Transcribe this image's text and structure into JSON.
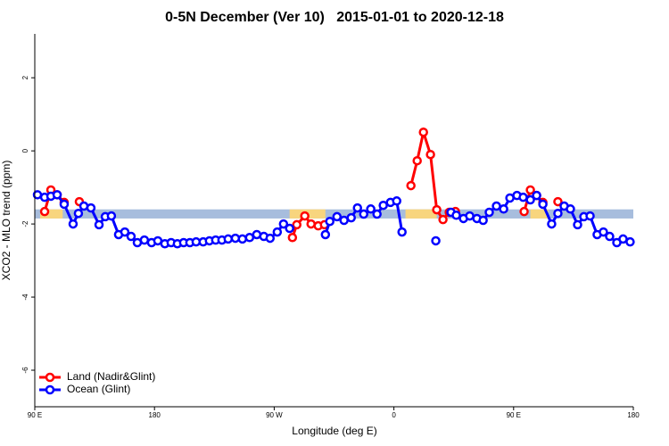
{
  "chart_data": {
    "type": "line",
    "title": "0-5N December (Ver 10)   2015-01-01 to 2020-12-18",
    "x_label": "Longitude (deg E)",
    "y_label": "XCO2 - MLO trend (ppm)",
    "xlim": [
      90,
      540
    ],
    "ylim": [
      -7,
      3.2
    ],
    "xticks": [
      {
        "value": 90,
        "label": "90 E"
      },
      180,
      {
        "value": 270,
        "label": "90 W"
      },
      {
        "value": 360,
        "label": "0"
      },
      {
        "value": 450,
        "label": "90 E"
      },
      {
        "value": 540,
        "label": "180"
      }
    ],
    "yticks": [
      -6,
      -4,
      -2,
      0,
      2
    ],
    "legend": "bottom-left",
    "band": {
      "y": [
        -1.85,
        -1.6
      ],
      "color": "#a7bddd",
      "highlight_color": "#f8d57e",
      "highlights": [
        [
          94,
          111
        ],
        [
          281.6,
          308.5
        ],
        [
          368.7,
          392.2
        ],
        [
          462.6,
          476
        ]
      ]
    },
    "series": [
      {
        "name": "Land (Nadir&Glint)",
        "color": "#ff0000",
        "x": [
          97.4,
          102.1,
          106.8,
          112.1,
          118,
          123.5,
          200,
          283.7,
          287.0,
          293.0,
          297.7,
          303.1,
          307.8,
          340,
          372.8,
          377.5,
          382.2,
          387.5,
          392.2,
          396.9,
          401.6,
          406.3,
          430,
          457.9,
          462.6,
          467.3,
          472.0,
          478,
          483.3
        ],
        "values": [
          -1.66,
          -1.07,
          -1.2,
          -1.41,
          null,
          -1.39,
          null,
          -2.37,
          -2.02,
          -1.78,
          -2.0,
          -2.05,
          -2.02,
          null,
          -0.95,
          -0.27,
          0.51,
          -0.1,
          -1.61,
          -1.88,
          -1.68,
          -1.66,
          null,
          -1.66,
          -1.07,
          -1.22,
          -1.41,
          null,
          -1.39
        ]
      },
      {
        "name": "Ocean (Glint)",
        "color": "#0000ff",
        "x": [
          92.0,
          97.4,
          102.1,
          106.8,
          112.1,
          118.8,
          122.8,
          126.9,
          132.2,
          138.3,
          143.0,
          147.6,
          153.0,
          157.7,
          162.4,
          167.1,
          172.4,
          177.8,
          182.5,
          187.8,
          192.5,
          197.2,
          201.9,
          206.6,
          211.3,
          216.6,
          221.3,
          226.0,
          230.7,
          235.4,
          240.8,
          246.1,
          251.5,
          256.9,
          262.2,
          266.9,
          272.3,
          277.0,
          281.6,
          295,
          308.5,
          311.8,
          317.2,
          322.5,
          327.9,
          332.6,
          337.3,
          342.6,
          347.3,
          352.0,
          357.4,
          362.1,
          366.1,
          380,
          391.5,
          397,
          402.9,
          406.9,
          412.3,
          417.0,
          422.4,
          427.1,
          431.7,
          437.1,
          442.5,
          447.2,
          452.5,
          457.2,
          462.6,
          467.3,
          472.0,
          478.6,
          483.3,
          488.0,
          492.7,
          498.1,
          502.8,
          507.5,
          512.8,
          517.5,
          522.2,
          527.6,
          532.3,
          537.6
        ],
        "values": [
          -1.2,
          -1.27,
          -1.24,
          -1.2,
          -1.46,
          -2.0,
          -1.71,
          -1.51,
          -1.56,
          -2.02,
          -1.8,
          -1.78,
          -2.29,
          -2.22,
          -2.34,
          -2.51,
          -2.44,
          -2.51,
          -2.46,
          -2.54,
          -2.51,
          -2.54,
          -2.51,
          -2.51,
          -2.49,
          -2.49,
          -2.46,
          -2.44,
          -2.44,
          -2.41,
          -2.39,
          -2.41,
          -2.37,
          -2.29,
          -2.34,
          -2.39,
          -2.22,
          -2.0,
          -2.12,
          null,
          -2.29,
          -1.93,
          -1.8,
          -1.9,
          -1.83,
          -1.56,
          -1.73,
          -1.59,
          -1.73,
          -1.49,
          -1.41,
          -1.37,
          -2.22,
          null,
          -2.46,
          null,
          -1.68,
          -1.76,
          -1.85,
          -1.78,
          -1.85,
          -1.9,
          -1.68,
          -1.51,
          -1.59,
          -1.29,
          -1.22,
          -1.27,
          -1.34,
          -1.22,
          -1.46,
          -2.0,
          -1.71,
          -1.51,
          -1.59,
          -2.02,
          -1.8,
          -1.78,
          -2.29,
          -2.22,
          -2.34,
          -2.51,
          -2.41,
          -2.49
        ]
      }
    ]
  }
}
